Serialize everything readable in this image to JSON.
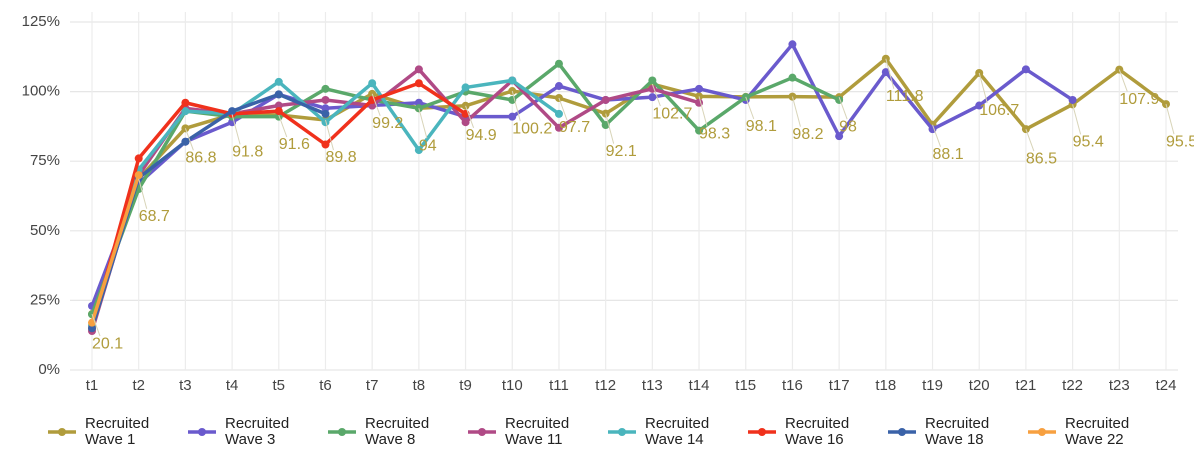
{
  "chart_data": {
    "type": "line",
    "categories": [
      "t1",
      "t2",
      "t3",
      "t4",
      "t5",
      "t6",
      "t7",
      "t8",
      "t9",
      "t10",
      "t11",
      "t12",
      "t13",
      "t14",
      "t15",
      "t16",
      "t17",
      "t18",
      "t19",
      "t20",
      "t21",
      "t22",
      "t23",
      "t24"
    ],
    "ylim": [
      0,
      125
    ],
    "yticks": [
      {
        "value": 0,
        "label": "0%"
      },
      {
        "value": 25,
        "label": "25%"
      },
      {
        "value": 50,
        "label": "50%"
      },
      {
        "value": 75,
        "label": "75%"
      },
      {
        "value": 100,
        "label": "100%"
      },
      {
        "value": 125,
        "label": "125%"
      }
    ],
    "grid": true,
    "legend": "bottom",
    "series": [
      {
        "name": "Recruited Wave 1",
        "color": "#b09c3c",
        "labels": true,
        "values": [
          20.1,
          68.7,
          86.8,
          91.8,
          91.6,
          89.8,
          99.2,
          94,
          94.9,
          100.2,
          97.7,
          92.1,
          102.7,
          98.3,
          98.1,
          98.2,
          98,
          111.8,
          88.1,
          106.7,
          86.5,
          95.4,
          107.9,
          95.5
        ]
      },
      {
        "name": "Recruited Wave 3",
        "color": "#6a5acd",
        "values": [
          23,
          67,
          82,
          89,
          99,
          94,
          95,
          96,
          91,
          91,
          102,
          97,
          98,
          101,
          97,
          117,
          84,
          107,
          86.5,
          95,
          108,
          97,
          null,
          null
        ]
      },
      {
        "name": "Recruited Wave 8",
        "color": "#5aa86a",
        "values": [
          20,
          65,
          93,
          91,
          91,
          101,
          97,
          94,
          100,
          97,
          110,
          88,
          104,
          86,
          98,
          105,
          97,
          null,
          null,
          null,
          null,
          null,
          null,
          null
        ]
      },
      {
        "name": "Recruited Wave 11",
        "color": "#b04a86",
        "values": [
          14,
          70,
          94,
          92,
          95,
          97,
          95,
          108,
          89,
          104,
          87,
          97,
          101,
          96,
          null,
          null,
          null,
          null,
          null,
          null,
          null,
          null,
          null,
          null
        ]
      },
      {
        "name": "Recruited Wave 14",
        "color": "#4ab5bd",
        "values": [
          16,
          72,
          93,
          92,
          103.5,
          89,
          103,
          79,
          101.5,
          104,
          92,
          null,
          null,
          null,
          null,
          null,
          null,
          null,
          null,
          null,
          null,
          null,
          null,
          null
        ]
      },
      {
        "name": "Recruited Wave 16",
        "color": "#f0311c",
        "values": [
          15,
          76,
          96,
          92,
          93,
          81,
          97,
          103,
          92,
          null,
          null,
          null,
          null,
          null,
          null,
          null,
          null,
          null,
          null,
          null,
          null,
          null,
          null,
          null
        ]
      },
      {
        "name": "Recruited Wave 18",
        "color": "#3a62a8",
        "values": [
          15,
          69,
          82,
          93,
          99,
          92,
          null,
          null,
          null,
          null,
          null,
          null,
          null,
          null,
          null,
          null,
          null,
          null,
          null,
          null,
          null,
          null,
          null,
          null
        ]
      },
      {
        "name": "Recruited Wave 22",
        "color": "#f7a040",
        "values": [
          17,
          70,
          null,
          null,
          null,
          null,
          null,
          null,
          null,
          null,
          null,
          null,
          null,
          null,
          null,
          null,
          null,
          null,
          null,
          null,
          null,
          null,
          null,
          null
        ]
      }
    ]
  }
}
